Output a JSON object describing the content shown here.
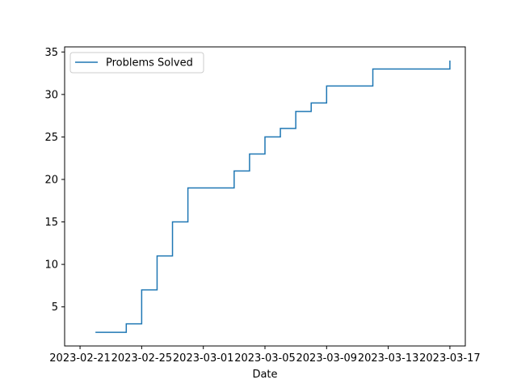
{
  "chart_data": {
    "type": "line",
    "line_style": "step-post",
    "xlabel": "Date",
    "ylabel": "",
    "x_ticks": [
      "2023-02-21",
      "2023-02-25",
      "2023-03-01",
      "2023-03-05",
      "2023-03-09",
      "2023-03-13",
      "2023-03-17"
    ],
    "y_ticks": [
      5,
      10,
      15,
      20,
      25,
      30,
      35
    ],
    "xlim": [
      "2023-02-20",
      "2023-03-18"
    ],
    "ylim": [
      0.4,
      35.6
    ],
    "grid": false,
    "legend_position": "upper-left",
    "series": [
      {
        "name": "Problems Solved",
        "color": "#1f77b4",
        "x": [
          "2023-02-22",
          "2023-02-24",
          "2023-02-25",
          "2023-02-26",
          "2023-02-27",
          "2023-02-28",
          "2023-03-03",
          "2023-03-04",
          "2023-03-05",
          "2023-03-06",
          "2023-03-07",
          "2023-03-08",
          "2023-03-09",
          "2023-03-12",
          "2023-03-17"
        ],
        "y": [
          2,
          3,
          7,
          11,
          15,
          19,
          21,
          23,
          25,
          26,
          28,
          29,
          31,
          33,
          34
        ]
      }
    ]
  }
}
